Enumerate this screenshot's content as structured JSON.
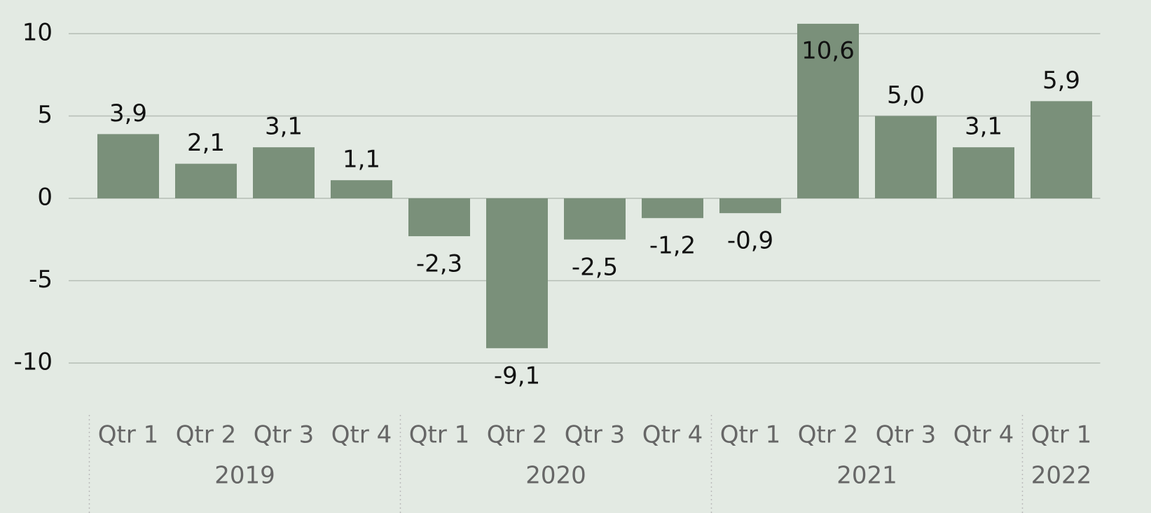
{
  "chart_data": {
    "type": "bar",
    "color": "#7a907a",
    "grid": true,
    "ylim": [
      -12,
      12
    ],
    "yticks": [
      -10,
      -5,
      0,
      5,
      10
    ],
    "groups": [
      {
        "label": "2019",
        "categories": [
          "Qtr 1",
          "Qtr 2",
          "Qtr 3",
          "Qtr 4"
        ],
        "values": [
          3.9,
          2.1,
          3.1,
          1.1
        ],
        "value_labels": [
          "3,9",
          "2,1",
          "3,1",
          "1,1"
        ]
      },
      {
        "label": "2020",
        "categories": [
          "Qtr 1",
          "Qtr 2",
          "Qtr 3",
          "Qtr 4"
        ],
        "values": [
          -2.3,
          -9.1,
          -2.5,
          -1.2
        ],
        "value_labels": [
          "-2,3",
          "-9,1",
          "-2,5",
          "-1,2"
        ]
      },
      {
        "label": "2021",
        "categories": [
          "Qtr 1",
          "Qtr 2",
          "Qtr 3",
          "Qtr 4"
        ],
        "values": [
          -0.9,
          10.6,
          5.0,
          3.1
        ],
        "value_labels": [
          "-0,9",
          "10,6",
          "5,0",
          "3,1"
        ]
      },
      {
        "label": "2022",
        "categories": [
          "Qtr 1"
        ],
        "values": [
          5.9
        ],
        "value_labels": [
          "5,9"
        ]
      }
    ]
  }
}
